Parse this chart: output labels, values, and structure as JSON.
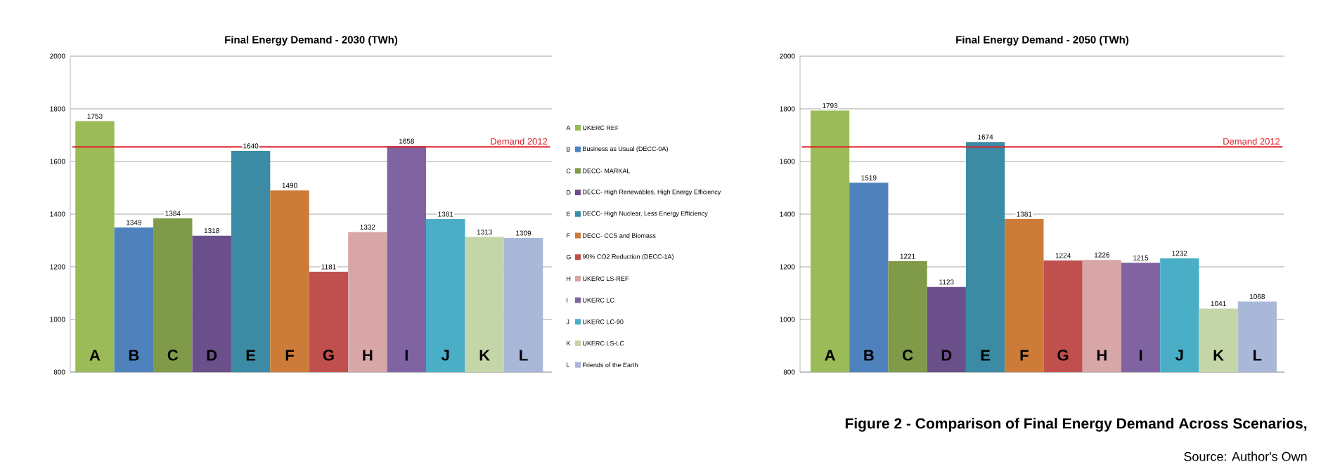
{
  "chart_data": [
    {
      "type": "bar",
      "title": "Final Energy Demand - 2030 (TWh)",
      "categories": [
        "A",
        "B",
        "C",
        "D",
        "E",
        "F",
        "G",
        "H",
        "I",
        "J",
        "K",
        "L"
      ],
      "series": [
        {
          "name": "UKERC REF",
          "color": "#9bbb59",
          "values": [
            1753,
            null,
            null,
            null,
            null,
            null,
            null,
            null,
            null,
            null,
            null,
            null
          ]
        },
        {
          "name": "Business as Usual (DECC-0A)",
          "color": "#4f81bd",
          "values": [
            null,
            1349,
            null,
            null,
            null,
            null,
            null,
            null,
            null,
            null,
            null,
            null
          ]
        },
        {
          "name": "DECC- MARKAL",
          "color": "#7f9a48",
          "values": [
            null,
            null,
            1384,
            null,
            null,
            null,
            null,
            null,
            null,
            null,
            null,
            null
          ]
        },
        {
          "name": "DECC- High Renewables, High Energy Efficiency",
          "color": "#6b4f8a",
          "values": [
            null,
            null,
            null,
            1318,
            null,
            null,
            null,
            null,
            null,
            null,
            null,
            null
          ]
        },
        {
          "name": "DECC- High Nuclear, Less Energy Efficiency",
          "color": "#3a8ba3",
          "values": [
            null,
            null,
            null,
            null,
            1640,
            null,
            null,
            null,
            null,
            null,
            null,
            null
          ]
        },
        {
          "name": "DECC- CCS and Biomass",
          "color": "#cd7b38",
          "values": [
            null,
            null,
            null,
            null,
            null,
            1490,
            null,
            null,
            null,
            null,
            null,
            null
          ]
        },
        {
          "name": "90% CO2 Reduction (DECC-1A)",
          "color": "#c0504d",
          "values": [
            null,
            null,
            null,
            null,
            null,
            null,
            1181,
            null,
            null,
            null,
            null,
            null
          ]
        },
        {
          "name": "UKERC LS-REF",
          "color": "#d9a6a8",
          "values": [
            null,
            null,
            null,
            null,
            null,
            null,
            null,
            1332,
            null,
            null,
            null,
            null
          ]
        },
        {
          "name": "UKERC LC",
          "color": "#8064a2",
          "values": [
            null,
            null,
            null,
            null,
            null,
            null,
            null,
            null,
            1658,
            null,
            null,
            null
          ]
        },
        {
          "name": "UKERC LC-90",
          "color": "#4aaec6",
          "values": [
            null,
            null,
            null,
            null,
            null,
            null,
            null,
            null,
            null,
            1381,
            null,
            null
          ]
        },
        {
          "name": "UKERC LS-LC",
          "color": "#c4d6a8",
          "values": [
            null,
            null,
            null,
            null,
            null,
            null,
            null,
            null,
            null,
            null,
            1313,
            null
          ]
        },
        {
          "name": "Friends of the Earth",
          "color": "#a9b8d8",
          "values": [
            null,
            null,
            null,
            null,
            null,
            null,
            null,
            null,
            null,
            null,
            null,
            1309
          ]
        }
      ],
      "ylim": [
        800,
        2000
      ],
      "yticks": [
        800,
        1000,
        1200,
        1400,
        1600,
        1800,
        2000
      ],
      "grid": "y",
      "legend": "right",
      "data_labels": true,
      "ref_lines": [
        {
          "axis": "y",
          "value": 1655,
          "label": "Demand 2012",
          "color": "#e0202a"
        }
      ]
    },
    {
      "type": "bar",
      "title": "Final Energy Demand - 2050 (TWh)",
      "categories": [
        "A",
        "B",
        "C",
        "D",
        "E",
        "F",
        "G",
        "H",
        "I",
        "J",
        "K",
        "L"
      ],
      "values": [
        1793,
        1519,
        1221,
        1123,
        1674,
        1381,
        1224,
        1226,
        1215,
        1232,
        1041,
        1068
      ],
      "colors": [
        "#9bbb59",
        "#4f81bd",
        "#7f9a48",
        "#6b4f8a",
        "#3a8ba3",
        "#cd7b38",
        "#c0504d",
        "#d9a6a8",
        "#8064a2",
        "#4aaec6",
        "#c4d6a8",
        "#a9b8d8"
      ],
      "ylim": [
        800,
        2000
      ],
      "yticks": [
        800,
        1000,
        1200,
        1400,
        1600,
        1800,
        2000
      ],
      "grid": "y",
      "data_labels": true,
      "ref_lines": [
        {
          "axis": "y",
          "value": 1655,
          "label": "Demand 2012",
          "color": "#e0202a"
        }
      ],
      "annotations": [
        "Figure 2 - Comparison of Final Energy Demand Across Scenarios,",
        "Source: Author's Own"
      ]
    }
  ]
}
